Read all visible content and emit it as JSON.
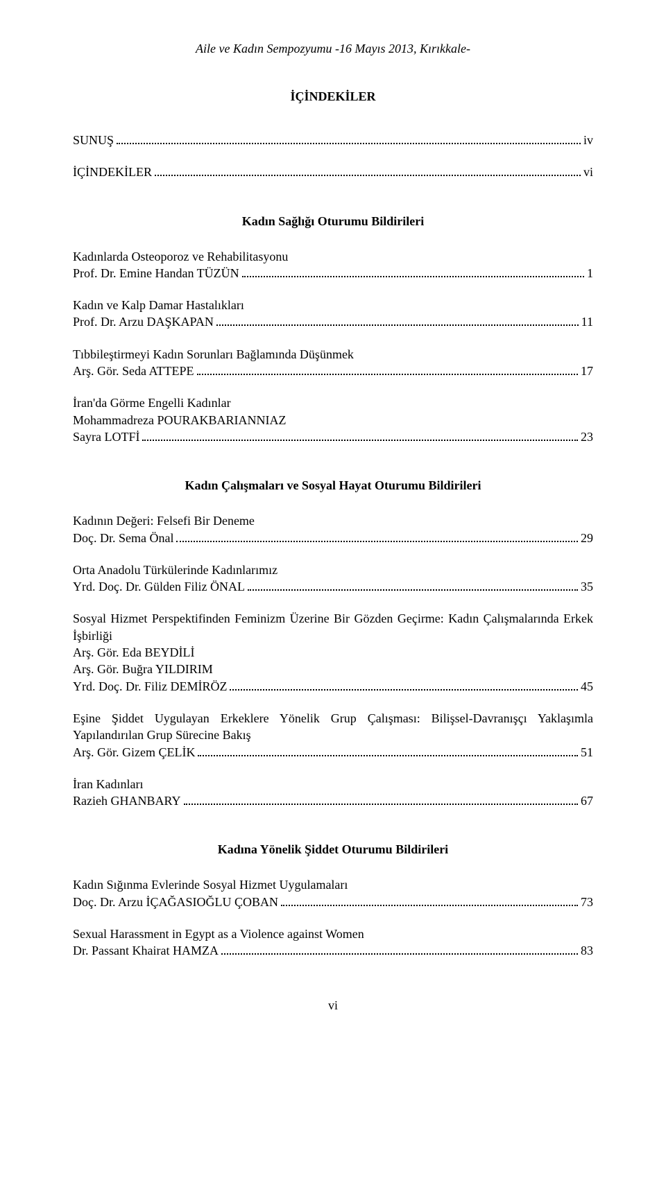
{
  "header": "Aile ve Kadın Sempozyumu -16 Mayıs 2013, Kırıkkale-",
  "mainTitle": "İÇİNDEKİLER",
  "front": [
    {
      "label": "SUNUŞ",
      "page": "iv"
    },
    {
      "label": "İÇİNDEKİLER",
      "page": "vi"
    }
  ],
  "sections": [
    {
      "title": "Kadın Sağlığı Oturumu Bildirileri",
      "entries": [
        {
          "lines": [
            "Kadınlarda Osteoporoz ve Rehabilitasyonu"
          ],
          "lastLabel": "Prof. Dr. Emine Handan TÜZÜN",
          "page": "1"
        },
        {
          "lines": [
            "Kadın ve Kalp Damar Hastalıkları"
          ],
          "lastLabel": "Prof. Dr. Arzu DAŞKAPAN",
          "page": "11"
        },
        {
          "lines": [
            "Tıbbileştirmeyi Kadın Sorunları Bağlamında Düşünmek"
          ],
          "lastLabel": "Arş. Gör. Seda ATTEPE",
          "page": "17"
        },
        {
          "lines": [
            "İran'da Görme Engelli Kadınlar",
            "Mohammadreza POURAKBARIANNIAZ"
          ],
          "lastLabel": "Sayra LOTFİ",
          "page": "23"
        }
      ]
    },
    {
      "title": "Kadın Çalışmaları ve Sosyal Hayat Oturumu Bildirileri",
      "entries": [
        {
          "lines": [
            "Kadının Değeri: Felsefi Bir Deneme"
          ],
          "lastLabel": "Doç. Dr. Sema Önal",
          "page": "29"
        },
        {
          "lines": [
            "Orta Anadolu Türkülerinde Kadınlarımız"
          ],
          "lastLabel": "Yrd. Doç. Dr. Gülden Filiz ÖNAL",
          "page": "35"
        },
        {
          "lines": [
            "Sosyal Hizmet Perspektifinden Feminizm Üzerine Bir Gözden Geçirme: Kadın Çalışmalarında Erkek İşbirliği",
            "Arş. Gör. Eda BEYDİLİ",
            "Arş. Gör. Buğra YILDIRIM"
          ],
          "justifyFirst": true,
          "lastLabel": "Yrd. Doç. Dr. Filiz DEMİRÖZ",
          "page": "45"
        },
        {
          "lines": [
            "Eşine Şiddet Uygulayan Erkeklere Yönelik Grup Çalışması: Bilişsel-Davranışçı Yaklaşımla Yapılandırılan Grup Sürecine Bakış"
          ],
          "justifyFirst": true,
          "lastLabel": "Arş. Gör. Gizem ÇELİK",
          "page": "51"
        },
        {
          "lines": [
            "İran Kadınları"
          ],
          "lastLabel": "Razieh GHANBARY",
          "page": "67"
        }
      ]
    },
    {
      "title": "Kadına Yönelik Şiddet Oturumu Bildirileri",
      "entries": [
        {
          "lines": [
            "Kadın Sığınma Evlerinde Sosyal Hizmet Uygulamaları"
          ],
          "lastLabel": "Doç. Dr. Arzu İÇAĞASIOĞLU ÇOBAN",
          "page": "73"
        },
        {
          "lines": [
            "Sexual Harassment in Egypt as a Violence against Women"
          ],
          "lastLabel": "Dr. Passant Khairat HAMZA",
          "page": "83"
        }
      ]
    }
  ],
  "pageNumber": "vi"
}
